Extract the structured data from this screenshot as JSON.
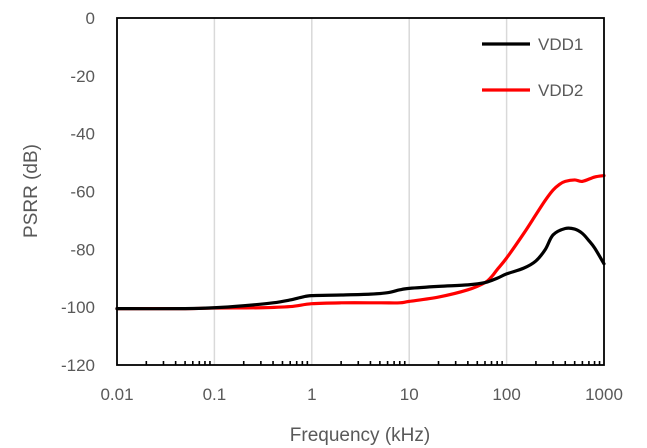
{
  "chart_data": {
    "type": "line",
    "title": "",
    "xlabel": "Frequency (kHz)",
    "ylabel": "PSRR (dB)",
    "x_scale": "log",
    "xlim": [
      0.01,
      1000
    ],
    "ylim": [
      -120,
      0
    ],
    "x_ticks": [
      0.01,
      0.1,
      1,
      10,
      100,
      1000
    ],
    "x_tick_labels": [
      "0.01",
      "0.1",
      "1",
      "10",
      "100",
      "1000"
    ],
    "y_ticks": [
      0,
      -20,
      -40,
      -60,
      -80,
      -100,
      -120
    ],
    "y_tick_labels": [
      "0",
      "-20",
      "-40",
      "-60",
      "-80",
      "-100",
      "-120"
    ],
    "grid": "vertical",
    "legend_position": "top-right",
    "series": [
      {
        "name": "VDD1",
        "color": "#000000",
        "x": [
          0.01,
          0.05,
          0.1,
          0.2,
          0.4,
          0.6,
          0.8,
          1,
          2,
          4,
          6,
          8,
          10,
          20,
          40,
          60,
          80,
          100,
          150,
          200,
          250,
          300,
          400,
          500,
          600,
          700,
          800,
          1000
        ],
        "y": [
          -100.5,
          -100.5,
          -100.2,
          -99.5,
          -98.5,
          -97.5,
          -96.5,
          -96,
          -95.8,
          -95.5,
          -95,
          -94,
          -93.5,
          -92.8,
          -92.3,
          -91.5,
          -90,
          -88.5,
          -86.5,
          -84,
          -80,
          -75,
          -72.8,
          -73,
          -74.5,
          -77,
          -79.5,
          -85
        ]
      },
      {
        "name": "VDD2",
        "color": "#ff0000",
        "x": [
          0.01,
          0.05,
          0.1,
          0.3,
          0.6,
          1,
          2,
          5,
          8,
          10,
          20,
          40,
          60,
          70,
          80,
          100,
          150,
          200,
          250,
          300,
          350,
          400,
          500,
          600,
          800,
          1000
        ],
        "y": [
          -100.5,
          -100.5,
          -100.3,
          -100.2,
          -99.8,
          -98.8,
          -98.5,
          -98.5,
          -98.5,
          -98,
          -96.5,
          -94,
          -91.5,
          -89.5,
          -87,
          -83,
          -74.5,
          -68,
          -63,
          -59.5,
          -57.5,
          -56.5,
          -56,
          -56.5,
          -55,
          -54.5
        ]
      }
    ]
  }
}
